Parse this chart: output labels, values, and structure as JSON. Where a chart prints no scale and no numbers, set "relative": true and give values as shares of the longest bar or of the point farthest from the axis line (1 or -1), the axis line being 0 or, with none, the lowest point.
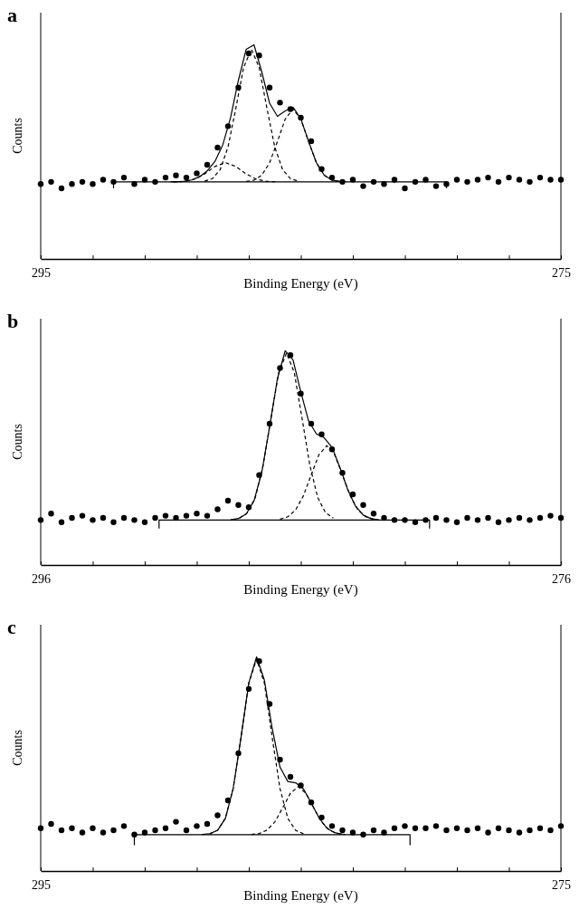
{
  "chart_data": [
    {
      "type": "scatter",
      "title": "a",
      "xlabel": "Binding Energy (eV)",
      "ylabel": "Counts",
      "relative": true,
      "xlim": [
        295,
        275
      ],
      "xticks": [
        295,
        {
          "value": 293,
          "label": null
        },
        {
          "value": 291,
          "label": null
        },
        {
          "value": 289,
          "label": null
        },
        {
          "value": 287,
          "label": null
        },
        {
          "value": 285,
          "label": null
        },
        {
          "value": 283,
          "label": null
        },
        {
          "value": 281,
          "label": null
        },
        {
          "value": 279,
          "label": null
        },
        {
          "value": 277,
          "label": null
        },
        275
      ],
      "series": [
        {
          "marker": "circle",
          "color": "#000000",
          "x": [
            295.0,
            294.6,
            294.2,
            293.8,
            293.4,
            293.0,
            292.6,
            292.2,
            291.8,
            291.4,
            291.0,
            290.6,
            290.2,
            289.8,
            289.4,
            289.0,
            288.6,
            288.2,
            287.8,
            287.4,
            287.0,
            286.6,
            286.2,
            285.8,
            285.4,
            285.0,
            284.6,
            284.2,
            283.8,
            283.4,
            283.0,
            282.6,
            282.2,
            281.8,
            281.4,
            281.0,
            280.6,
            280.2,
            279.8,
            279.4,
            279.0,
            278.6,
            278.2,
            277.8,
            277.4,
            277.0,
            276.6,
            276.2,
            275.8,
            275.4,
            275.0
          ],
          "values": [
            0.35,
            0.36,
            0.33,
            0.35,
            0.36,
            0.35,
            0.37,
            0.36,
            0.38,
            0.35,
            0.37,
            0.36,
            0.38,
            0.39,
            0.38,
            0.4,
            0.44,
            0.52,
            0.62,
            0.8,
            0.96,
            0.95,
            0.8,
            0.73,
            0.7,
            0.66,
            0.55,
            0.42,
            0.38,
            0.36,
            0.37,
            0.34,
            0.36,
            0.35,
            0.37,
            0.33,
            0.36,
            0.37,
            0.34,
            0.35,
            0.37,
            0.36,
            0.37,
            0.38,
            0.36,
            0.38,
            0.37,
            0.36,
            0.38,
            0.37,
            0.37
          ]
        },
        {
          "type": "line",
          "line_style": "solid",
          "color": "#000000",
          "x": [
            290.0,
            289.5,
            289.2,
            288.9,
            288.6,
            288.3,
            288.0,
            287.7,
            287.4,
            287.1,
            286.8,
            286.5,
            286.2,
            285.9,
            285.6,
            285.3,
            285.0,
            284.7,
            284.4,
            284.1,
            283.8,
            283.5
          ],
          "values": [
            0.36,
            0.362,
            0.369,
            0.383,
            0.411,
            0.456,
            0.533,
            0.66,
            0.834,
            0.979,
            1.0,
            0.873,
            0.727,
            0.666,
            0.691,
            0.709,
            0.655,
            0.548,
            0.449,
            0.391,
            0.368,
            0.362
          ]
        },
        {
          "type": "line",
          "line_style": "dashed",
          "color": "#000000",
          "x": [
            288.7,
            288.4,
            288.1,
            287.8,
            287.5,
            287.2,
            286.9,
            286.6,
            286.3,
            286.0,
            285.7,
            285.4,
            285.1
          ],
          "values": [
            0.363,
            0.375,
            0.417,
            0.522,
            0.702,
            0.894,
            0.98,
            0.894,
            0.702,
            0.522,
            0.417,
            0.375,
            0.363
          ]
        },
        {
          "type": "line",
          "line_style": "dashed",
          "color": "#000000",
          "x": [
            287.1,
            286.8,
            286.5,
            286.2,
            285.9,
            285.6,
            285.3,
            285.0,
            284.7,
            284.4,
            284.1,
            283.8,
            283.5
          ],
          "values": [
            0.362,
            0.368,
            0.391,
            0.449,
            0.548,
            0.653,
            0.7,
            0.653,
            0.548,
            0.449,
            0.391,
            0.368,
            0.362
          ]
        },
        {
          "type": "line",
          "line_style": "dashed",
          "color": "#000000",
          "x": [
            289.9,
            289.5,
            289.1,
            288.7,
            288.3,
            287.9,
            287.5,
            287.1,
            286.7,
            286.3,
            285.9
          ],
          "values": [
            0.36,
            0.362,
            0.372,
            0.397,
            0.432,
            0.45,
            0.432,
            0.397,
            0.372,
            0.362,
            0.36
          ]
        },
        {
          "type": "line",
          "line_style": "solid",
          "color": "#000000",
          "x": [
            292.2,
            292.2,
            279.4,
            279.4
          ],
          "values": [
            0.33,
            0.36,
            0.36,
            0.33
          ]
        }
      ]
    },
    {
      "type": "scatter",
      "title": "b",
      "xlabel": "Binding Energy (eV)",
      "ylabel": "Counts",
      "relative": true,
      "xlim": [
        296,
        276
      ],
      "xticks": [
        296,
        {
          "value": 294,
          "label": null
        },
        {
          "value": 292,
          "label": null
        },
        {
          "value": 290,
          "label": null
        },
        {
          "value": 288,
          "label": null
        },
        {
          "value": 286,
          "label": null
        },
        {
          "value": 284,
          "label": null
        },
        {
          "value": 282,
          "label": null
        },
        {
          "value": 280,
          "label": null
        },
        {
          "value": 278,
          "label": null
        },
        276
      ],
      "series": [
        {
          "marker": "circle",
          "color": "#000000",
          "x": [
            296.0,
            295.6,
            295.2,
            294.8,
            294.4,
            294.0,
            293.6,
            293.2,
            292.8,
            292.4,
            292.0,
            291.6,
            291.2,
            290.8,
            290.4,
            290.0,
            289.6,
            289.2,
            288.8,
            288.4,
            288.0,
            287.6,
            287.2,
            286.8,
            286.4,
            286.0,
            285.6,
            285.2,
            284.8,
            284.4,
            284.0,
            283.6,
            283.2,
            282.8,
            282.4,
            282.0,
            281.6,
            281.2,
            280.8,
            280.4,
            280.0,
            279.6,
            279.2,
            278.8,
            278.4,
            278.0,
            277.6,
            277.2,
            276.8,
            276.4,
            276.0
          ],
          "values": [
            0.21,
            0.24,
            0.2,
            0.22,
            0.23,
            0.21,
            0.22,
            0.2,
            0.22,
            0.21,
            0.2,
            0.22,
            0.23,
            0.22,
            0.23,
            0.24,
            0.23,
            0.26,
            0.3,
            0.28,
            0.27,
            0.42,
            0.66,
            0.92,
            0.98,
            0.8,
            0.66,
            0.61,
            0.54,
            0.43,
            0.33,
            0.28,
            0.24,
            0.22,
            0.21,
            0.21,
            0.2,
            0.21,
            0.22,
            0.21,
            0.2,
            0.22,
            0.21,
            0.22,
            0.2,
            0.21,
            0.22,
            0.21,
            0.22,
            0.23,
            0.22
          ]
        },
        {
          "type": "line",
          "line_style": "solid",
          "color": "#000000",
          "x": [
            288.7,
            288.4,
            288.1,
            287.8,
            287.5,
            287.2,
            286.9,
            286.6,
            286.3,
            286.0,
            285.7,
            285.4,
            285.1,
            284.8,
            284.5,
            284.2,
            283.9,
            283.6,
            283.3,
            283.0
          ],
          "values": [
            0.211,
            0.217,
            0.238,
            0.299,
            0.433,
            0.644,
            0.87,
            1.0,
            0.958,
            0.808,
            0.672,
            0.612,
            0.594,
            0.549,
            0.457,
            0.353,
            0.275,
            0.233,
            0.216,
            0.211
          ]
        },
        {
          "type": "line",
          "line_style": "dashed",
          "color": "#000000",
          "x": [
            288.35,
            288.05,
            287.75,
            287.45,
            287.15,
            286.85,
            286.55,
            286.25,
            285.95,
            285.65,
            285.35,
            285.05,
            284.75
          ],
          "values": [
            0.219,
            0.244,
            0.315,
            0.464,
            0.683,
            0.898,
            0.99,
            0.898,
            0.683,
            0.464,
            0.315,
            0.244,
            0.219
          ]
        },
        {
          "type": "line",
          "line_style": "dashed",
          "color": "#000000",
          "x": [
            286.8,
            286.5,
            286.2,
            285.9,
            285.6,
            285.3,
            285.0,
            284.7,
            284.4,
            284.1,
            283.8,
            283.5,
            283.2
          ],
          "values": [
            0.214,
            0.225,
            0.257,
            0.323,
            0.421,
            0.516,
            0.557,
            0.516,
            0.421,
            0.323,
            0.257,
            0.225,
            0.214
          ]
        },
        {
          "type": "line",
          "line_style": "solid",
          "color": "#000000",
          "x": [
            291.45,
            291.45,
            281.05,
            281.05
          ],
          "values": [
            0.17,
            0.21,
            0.21,
            0.17
          ]
        }
      ]
    },
    {
      "type": "scatter",
      "title": "c",
      "xlabel": "Binding Energy (eV)",
      "ylabel": "Counts",
      "relative": true,
      "xlim": [
        295,
        275
      ],
      "xticks": [
        295,
        {
          "value": 293,
          "label": null
        },
        {
          "value": 291,
          "label": null
        },
        {
          "value": 289,
          "label": null
        },
        {
          "value": 287,
          "label": null
        },
        {
          "value": 285,
          "label": null
        },
        {
          "value": 283,
          "label": null
        },
        {
          "value": 281,
          "label": null
        },
        {
          "value": 279,
          "label": null
        },
        {
          "value": 277,
          "label": null
        },
        275
      ],
      "series": [
        {
          "marker": "circle",
          "color": "#000000",
          "x": [
            295.0,
            294.6,
            294.2,
            293.8,
            293.4,
            293.0,
            292.6,
            292.2,
            291.8,
            291.4,
            291.0,
            290.6,
            290.2,
            289.8,
            289.4,
            289.0,
            288.6,
            288.2,
            287.8,
            287.4,
            287.0,
            286.6,
            286.2,
            285.8,
            285.4,
            285.0,
            284.6,
            284.2,
            283.8,
            283.4,
            283.0,
            282.6,
            282.2,
            281.8,
            281.4,
            281.0,
            280.6,
            280.2,
            279.8,
            279.4,
            279.0,
            278.6,
            278.2,
            277.8,
            277.4,
            277.0,
            276.6,
            276.2,
            275.8,
            275.4,
            275.0
          ],
          "values": [
            0.2,
            0.22,
            0.19,
            0.2,
            0.18,
            0.2,
            0.18,
            0.19,
            0.21,
            0.17,
            0.18,
            0.19,
            0.2,
            0.23,
            0.19,
            0.21,
            0.22,
            0.26,
            0.33,
            0.55,
            0.85,
            0.98,
            0.78,
            0.52,
            0.44,
            0.4,
            0.32,
            0.25,
            0.21,
            0.19,
            0.18,
            0.17,
            0.19,
            0.18,
            0.2,
            0.21,
            0.2,
            0.2,
            0.21,
            0.19,
            0.2,
            0.19,
            0.2,
            0.18,
            0.2,
            0.19,
            0.18,
            0.19,
            0.2,
            0.19,
            0.21
          ]
        },
        {
          "type": "line",
          "line_style": "solid",
          "color": "#000000",
          "x": [
            288.8,
            288.5,
            288.2,
            287.9,
            287.6,
            287.3,
            287.0,
            286.7,
            286.4,
            286.1,
            285.8,
            285.5,
            285.2,
            284.9,
            284.6,
            284.3,
            284.0,
            283.7,
            283.4
          ],
          "values": [
            0.171,
            0.174,
            0.19,
            0.246,
            0.385,
            0.623,
            0.878,
            1.0,
            0.891,
            0.666,
            0.485,
            0.418,
            0.412,
            0.384,
            0.318,
            0.248,
            0.2,
            0.179,
            0.172
          ]
        },
        {
          "type": "line",
          "line_style": "dashed",
          "color": "#000000",
          "x": [
            288.5,
            288.2,
            287.9,
            287.6,
            287.3,
            287.0,
            286.7,
            286.4,
            286.1,
            285.8,
            285.5,
            285.2,
            284.9
          ],
          "values": [
            0.174,
            0.19,
            0.246,
            0.385,
            0.623,
            0.877,
            0.99,
            0.877,
            0.623,
            0.385,
            0.246,
            0.19,
            0.174
          ]
        },
        {
          "type": "line",
          "line_style": "dashed",
          "color": "#000000",
          "x": [
            286.9,
            286.6,
            286.3,
            286.0,
            285.7,
            285.4,
            285.1,
            284.8,
            284.5,
            284.2,
            283.9,
            283.6,
            283.3
          ],
          "values": [
            0.171,
            0.175,
            0.191,
            0.229,
            0.294,
            0.363,
            0.394,
            0.363,
            0.294,
            0.229,
            0.191,
            0.175,
            0.171
          ]
        },
        {
          "type": "line",
          "line_style": "solid",
          "color": "#000000",
          "x": [
            291.4,
            291.4,
            280.8,
            280.8
          ],
          "values": [
            0.12,
            0.17,
            0.17,
            0.12
          ]
        }
      ]
    }
  ]
}
